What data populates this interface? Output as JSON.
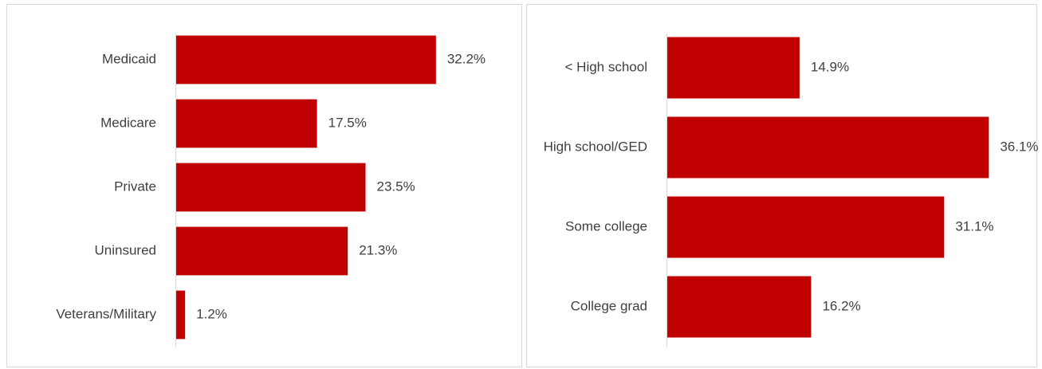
{
  "chart_data": [
    {
      "type": "barh",
      "color": "#c00000",
      "categories": [
        "Medicaid",
        "Medicare",
        "Private",
        "Uninsured",
        "Veterans/Military"
      ],
      "values": [
        32.2,
        17.5,
        23.5,
        21.3,
        1.2
      ],
      "value_labels": [
        "32.2%",
        "17.5%",
        "23.5%",
        "21.3%",
        "1.2%"
      ],
      "xlim": [
        0,
        40
      ]
    },
    {
      "type": "barh",
      "color": "#c00000",
      "categories": [
        "< High school",
        "High school/GED",
        "Some college",
        "College grad"
      ],
      "values": [
        14.9,
        36.1,
        31.1,
        16.2
      ],
      "value_labels": [
        "14.9%",
        "36.1%",
        "31.1%",
        "16.2%"
      ],
      "xlim": [
        0,
        40
      ]
    }
  ]
}
